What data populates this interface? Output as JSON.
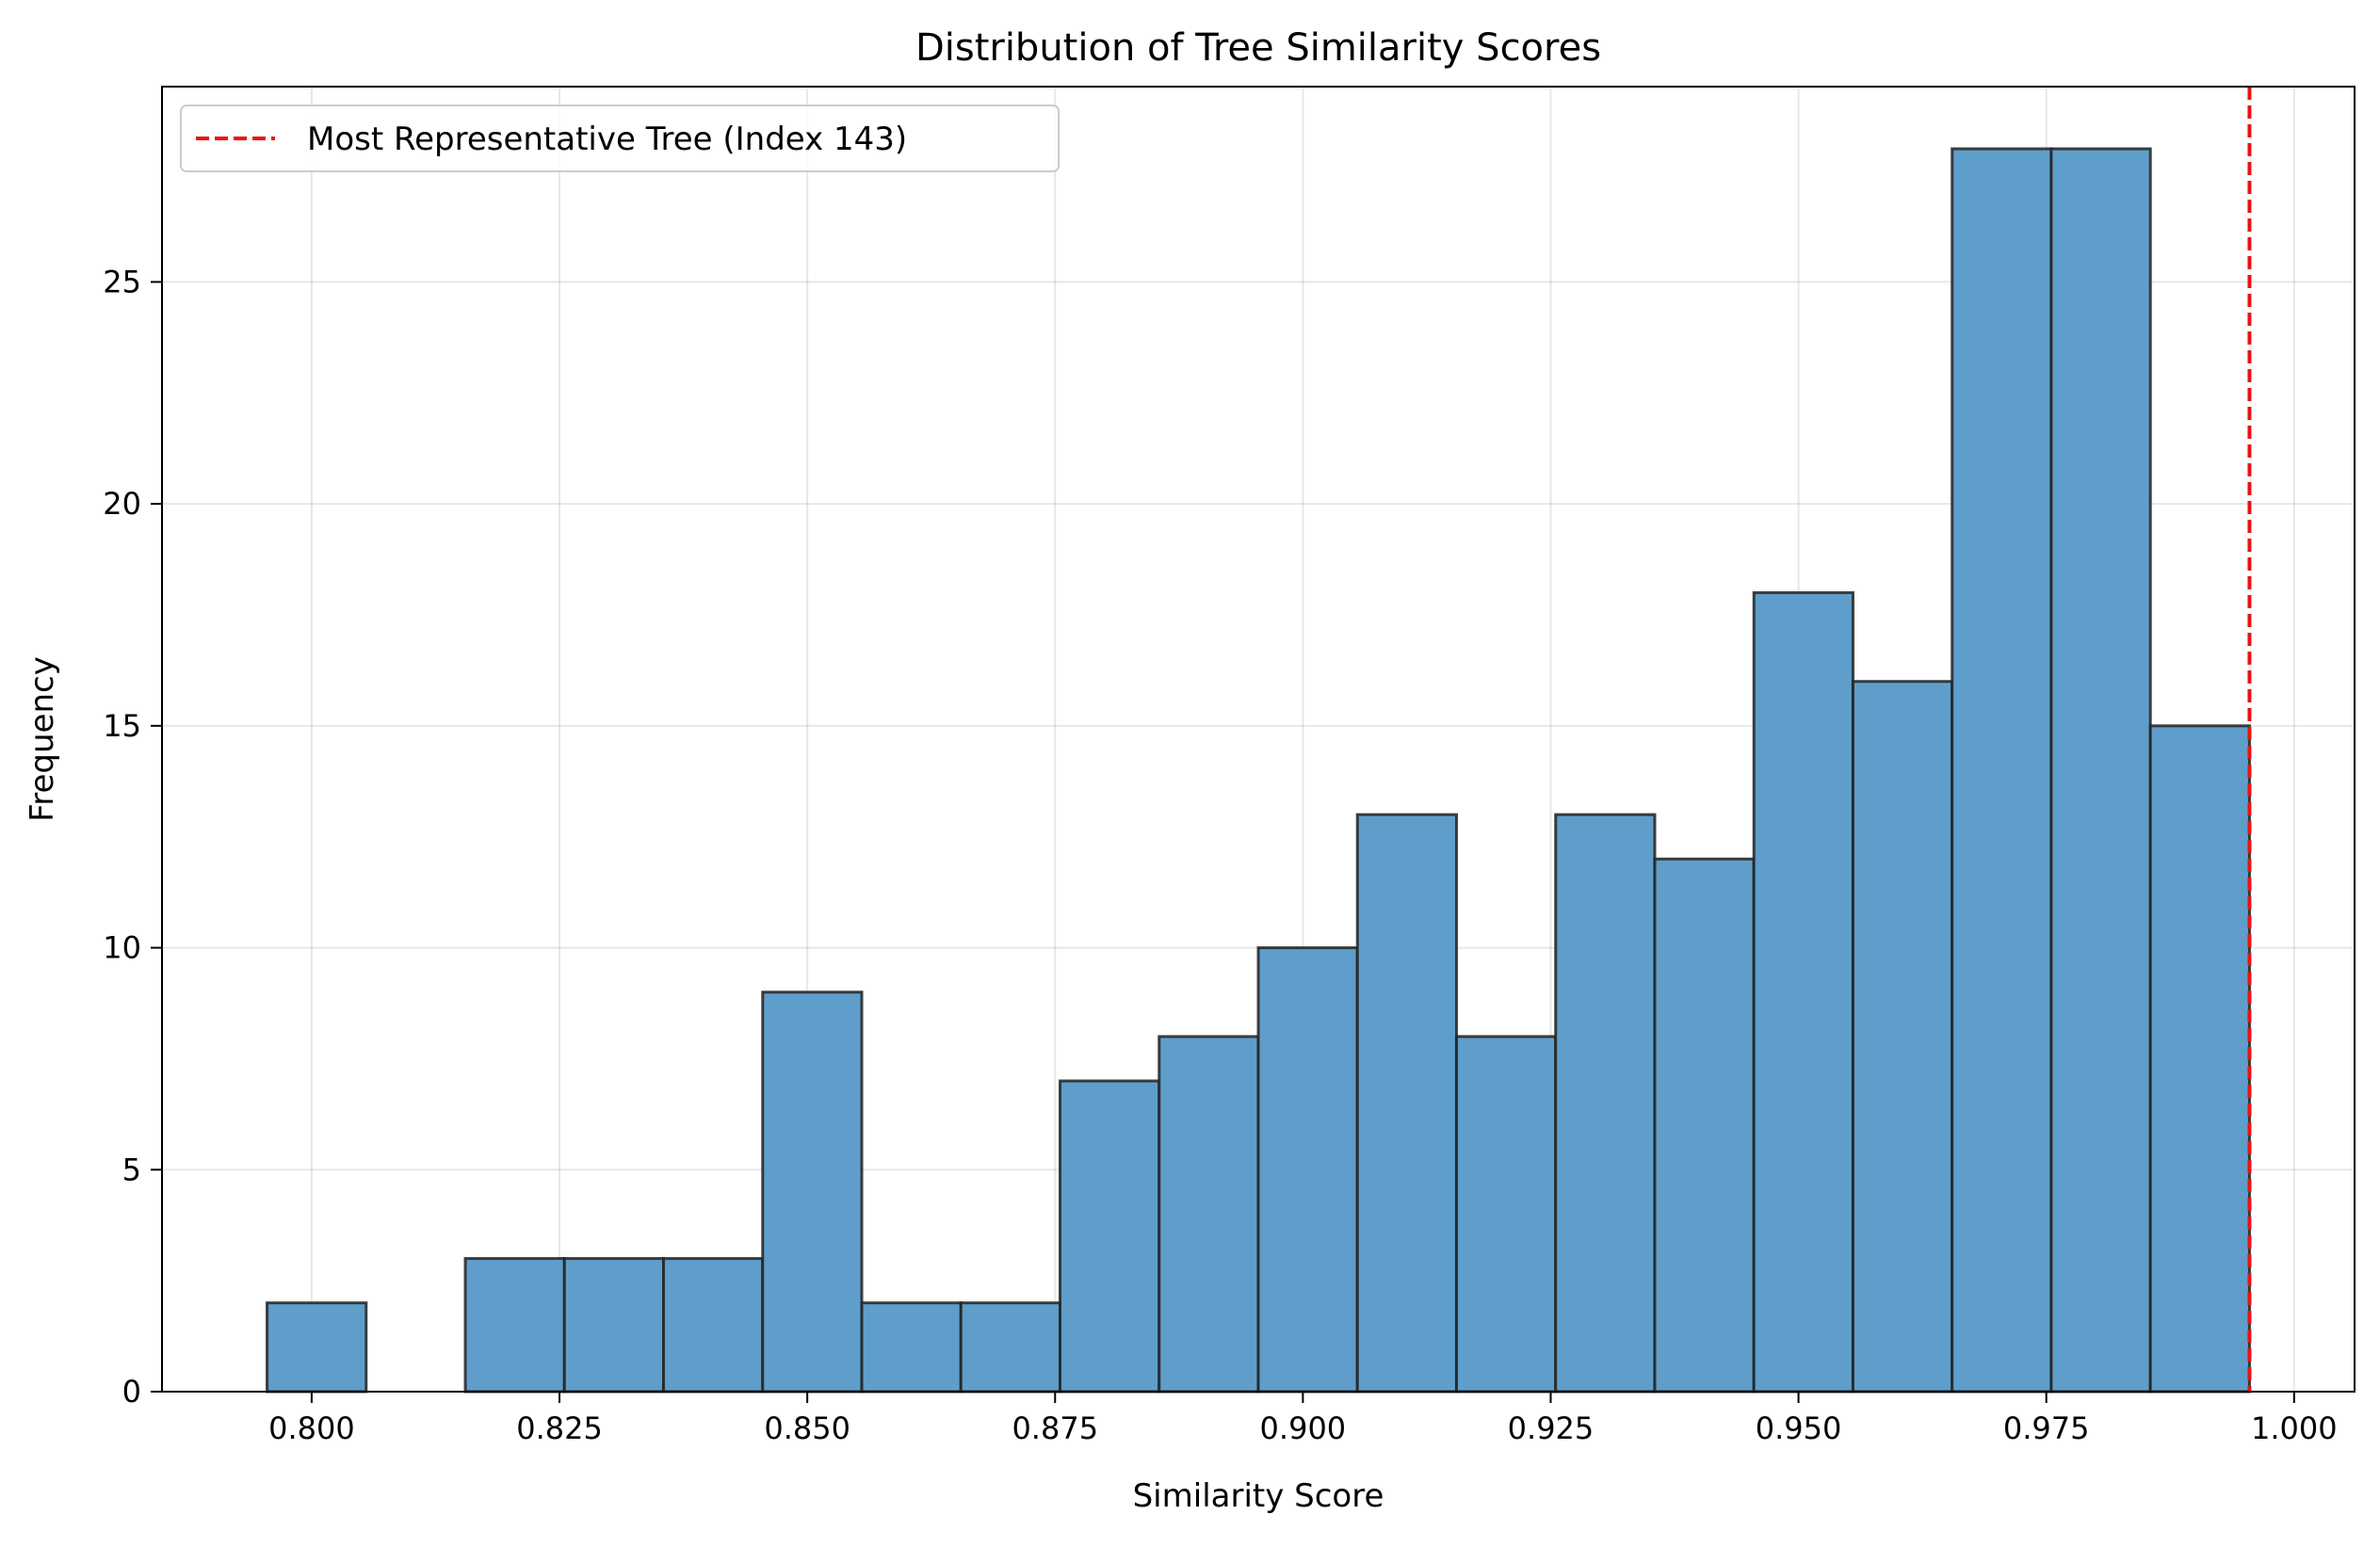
{
  "chart_data": {
    "type": "bar",
    "title": "Distribution of Tree Similarity Scores",
    "xlabel": "Similarity Score",
    "ylabel": "Frequency",
    "xlim": [
      0.7849,
      1.0061
    ],
    "ylim": [
      0,
      29.4
    ],
    "xticks": [
      0.8,
      0.825,
      0.85,
      0.875,
      0.9,
      0.925,
      0.95,
      0.975,
      1.0
    ],
    "xtick_labels": [
      "0.800",
      "0.825",
      "0.850",
      "0.875",
      "0.900",
      "0.925",
      "0.950",
      "0.975",
      "1.000"
    ],
    "yticks": [
      0,
      5,
      10,
      15,
      20,
      25
    ],
    "ytick_labels": [
      "0",
      "5",
      "10",
      "15",
      "20",
      "25"
    ],
    "grid": true,
    "bins": [
      {
        "x0": 0.7955,
        "x1": 0.8055,
        "count": 2
      },
      {
        "x0": 0.8055,
        "x1": 0.8155,
        "count": 0
      },
      {
        "x0": 0.8155,
        "x1": 0.8255,
        "count": 3
      },
      {
        "x0": 0.8255,
        "x1": 0.8355,
        "count": 3
      },
      {
        "x0": 0.8355,
        "x1": 0.8455,
        "count": 3
      },
      {
        "x0": 0.8455,
        "x1": 0.8555,
        "count": 9
      },
      {
        "x0": 0.8555,
        "x1": 0.8655,
        "count": 2
      },
      {
        "x0": 0.8655,
        "x1": 0.8755,
        "count": 2
      },
      {
        "x0": 0.8755,
        "x1": 0.8855,
        "count": 7
      },
      {
        "x0": 0.8855,
        "x1": 0.8955,
        "count": 8
      },
      {
        "x0": 0.8955,
        "x1": 0.9055,
        "count": 10
      },
      {
        "x0": 0.9055,
        "x1": 0.9155,
        "count": 13
      },
      {
        "x0": 0.9155,
        "x1": 0.9255,
        "count": 8
      },
      {
        "x0": 0.9255,
        "x1": 0.9355,
        "count": 13
      },
      {
        "x0": 0.9355,
        "x1": 0.9455,
        "count": 12
      },
      {
        "x0": 0.9455,
        "x1": 0.9555,
        "count": 18
      },
      {
        "x0": 0.9555,
        "x1": 0.9655,
        "count": 16
      },
      {
        "x0": 0.9655,
        "x1": 0.9755,
        "count": 28
      },
      {
        "x0": 0.9755,
        "x1": 0.9855,
        "count": 28
      },
      {
        "x0": 0.9855,
        "x1": 0.9955,
        "count": 15
      }
    ],
    "bar_color": "#5f9ecb",
    "bar_edge_color": "#222222",
    "reference_line": {
      "x": 0.9955,
      "color": "#ee1111",
      "style": "dashed"
    },
    "legend": {
      "entries": [
        {
          "label": "Most Representative Tree (Index 143)",
          "color": "#ee1111",
          "style": "dashed"
        }
      ],
      "placement": "upper-left"
    }
  }
}
